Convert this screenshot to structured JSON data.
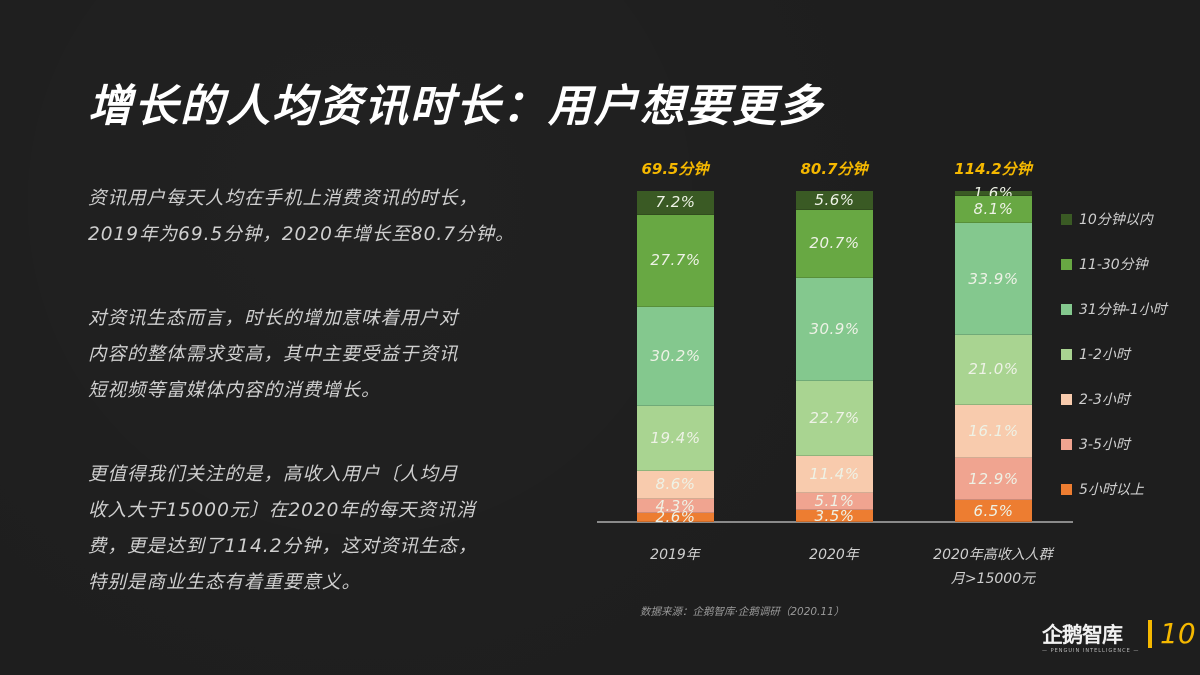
{
  "title": "增长的人均资讯时长：用户想要更多",
  "paragraphs": [
    [
      "资讯用户每天人均在手机上消费资讯的时长，",
      "2019年为69.5分钟，2020年增长至80.7分钟。"
    ],
    [
      "对资讯生态而言，时长的增加意味着用户对",
      "内容的整体需求变高，其中主要受益于资讯",
      "短视频等富媒体内容的消费增长。"
    ],
    [
      "更值得我们关注的是，高收入用户〔人均月",
      "收入大于15000元〕在2020年的每天资讯消",
      "费，更是达到了114.2分钟，这对资讯生态，",
      "特别是商业生态有着重要意义。"
    ]
  ],
  "chart_data": {
    "type": "bar",
    "stacked": true,
    "title": "",
    "xlabel": "",
    "ylabel": "",
    "ylim": [
      0,
      100
    ],
    "categories": [
      "2019年",
      "2020年",
      "2020年高收入人群\n月>15000元"
    ],
    "category_lines": [
      [
        "2019年"
      ],
      [
        "2020年"
      ],
      [
        "2020年高收入人群",
        "月>15000元"
      ]
    ],
    "totals": [
      "69.5分钟",
      "80.7分钟",
      "114.2分钟"
    ],
    "series": [
      {
        "name": "10分钟以内",
        "color": "#3a5a24",
        "values": [
          7.2,
          5.6,
          1.6
        ]
      },
      {
        "name": "11-30分钟",
        "color": "#68a843",
        "values": [
          27.7,
          20.7,
          8.1
        ]
      },
      {
        "name": "31分钟-1小时",
        "color": "#84c88e",
        "values": [
          30.2,
          30.9,
          33.9
        ]
      },
      {
        "name": "1-2小时",
        "color": "#a9d491",
        "values": [
          19.4,
          22.7,
          21.0
        ]
      },
      {
        "name": "2-3小时",
        "color": "#f8cbad",
        "values": [
          8.6,
          11.4,
          16.1
        ]
      },
      {
        "name": "3-5小时",
        "color": "#f0a490",
        "values": [
          4.3,
          5.1,
          12.9
        ]
      },
      {
        "name": "5小时以上",
        "color": "#ed7d31",
        "values": [
          2.6,
          3.5,
          6.5
        ]
      }
    ],
    "legend_position": "right",
    "grid": false
  },
  "source": "数据来源：企鹅智库·企鹅调研（2020.11）",
  "brand": {
    "name": "企鹅智库",
    "subtitle": "— PENGUIN INTELLIGENCE —",
    "page_number": "10",
    "accent": "#f5b800"
  }
}
